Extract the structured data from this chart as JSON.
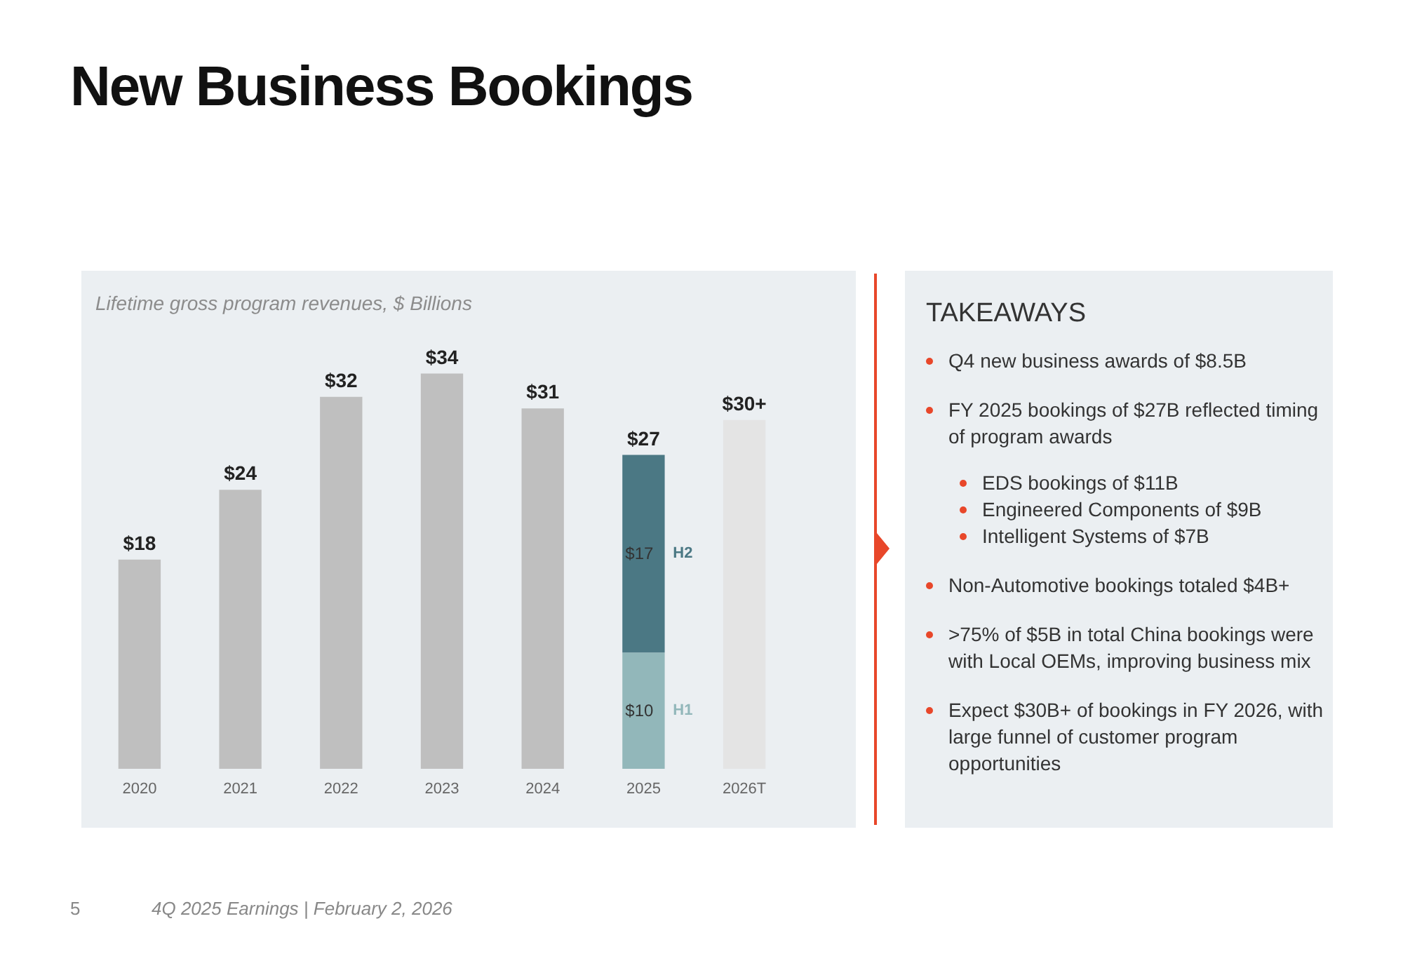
{
  "chart_data": [
    {
      "type": "bar",
      "title": "New Business Bookings",
      "subtitle": "Lifetime gross program revenues, $ Billions",
      "categories": [
        "2020",
        "2021",
        "2022",
        "2023",
        "2024",
        "2025",
        "2026T"
      ],
      "stacked": true,
      "series": [
        {
          "color": "#bfbfbf",
          "values": [
            18,
            24,
            32,
            34,
            31,
            null,
            null
          ],
          "value_labels": [
            "$18",
            "$24",
            "$32",
            "$34",
            "$31",
            null,
            null
          ]
        },
        {
          "name": "H1",
          "color": "#92b7ba",
          "values": [
            null,
            null,
            null,
            null,
            null,
            10,
            null
          ],
          "value_labels": [
            null,
            null,
            null,
            null,
            null,
            "$10",
            null
          ]
        },
        {
          "name": "H2",
          "color": "#4b7884",
          "values": [
            null,
            null,
            null,
            null,
            null,
            17,
            null
          ],
          "value_labels": [
            null,
            null,
            null,
            null,
            null,
            "$17",
            null
          ]
        },
        {
          "color": "#e4e4e4",
          "values": [
            null,
            null,
            null,
            null,
            null,
            null,
            30
          ],
          "value_labels": [
            null,
            null,
            null,
            null,
            null,
            null,
            "$30+"
          ]
        }
      ],
      "totals": [
        null,
        null,
        null,
        null,
        null,
        "$27",
        null
      ],
      "annotations": [
        "5",
        "4Q 2025 Earnings | February 2, 2026"
      ]
    },
    {
      "type": "other",
      "title": "TAKEAWAYS",
      "annotations": [
        "Q4 new business awards of $8.5B",
        "FY 2025 bookings of $27B reflected timing of program awards",
        "EDS bookings of $11B",
        "Engineered Components of $9B",
        "Intelligent Systems of $7B",
        "Non-Automotive bookings totaled $4B+",
        ">75% of $5B in total China bookings were with Local OEMs, improving business mix",
        "Expect $30B+ of bookings in FY 2026, with large funnel of customer program opportunities"
      ]
    }
  ]
}
